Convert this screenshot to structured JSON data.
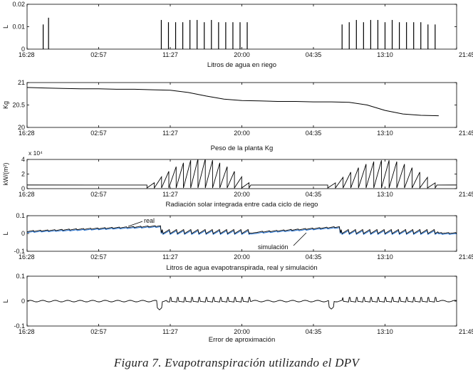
{
  "caption": "Figura 7. Evapotranspiración utilizando el DPV",
  "colors": {
    "main": "#000000",
    "simulation": "#1f6fd1",
    "axis": "#000000"
  },
  "chart_data": [
    {
      "type": "bar",
      "name": "riego",
      "ylabel": "L",
      "xlabel": "Litros de agua en riego",
      "ylim": [
        0,
        0.02
      ],
      "yticks": [
        "0",
        "0.01",
        "0.02"
      ],
      "xticks": [
        "16:28",
        "02:57",
        "11:27",
        "20:00",
        "04:35",
        "13:10",
        "21:45"
      ],
      "xlim": [
        0,
        24
      ],
      "pulses": [
        {
          "x": 0.9,
          "v": 0.011
        },
        {
          "x": 1.2,
          "v": 0.014
        },
        {
          "x": 7.5,
          "v": 0.013
        },
        {
          "x": 7.9,
          "v": 0.012
        },
        {
          "x": 8.3,
          "v": 0.012
        },
        {
          "x": 8.7,
          "v": 0.012
        },
        {
          "x": 9.1,
          "v": 0.013
        },
        {
          "x": 9.5,
          "v": 0.013
        },
        {
          "x": 9.9,
          "v": 0.012
        },
        {
          "x": 10.3,
          "v": 0.013
        },
        {
          "x": 10.7,
          "v": 0.012
        },
        {
          "x": 11.1,
          "v": 0.012
        },
        {
          "x": 11.5,
          "v": 0.012
        },
        {
          "x": 11.9,
          "v": 0.012
        },
        {
          "x": 12.3,
          "v": 0.012
        },
        {
          "x": 17.6,
          "v": 0.011
        },
        {
          "x": 18.0,
          "v": 0.012
        },
        {
          "x": 18.4,
          "v": 0.013
        },
        {
          "x": 18.8,
          "v": 0.012
        },
        {
          "x": 19.2,
          "v": 0.013
        },
        {
          "x": 19.6,
          "v": 0.013
        },
        {
          "x": 20.0,
          "v": 0.012
        },
        {
          "x": 20.4,
          "v": 0.013
        },
        {
          "x": 20.8,
          "v": 0.012
        },
        {
          "x": 21.2,
          "v": 0.012
        },
        {
          "x": 21.6,
          "v": 0.012
        },
        {
          "x": 22.0,
          "v": 0.012
        },
        {
          "x": 22.4,
          "v": 0.011
        },
        {
          "x": 22.8,
          "v": 0.011
        }
      ]
    },
    {
      "type": "line",
      "name": "peso",
      "ylabel": "Kg",
      "xlabel": "Peso de la planta Kg",
      "ylim": [
        20,
        21
      ],
      "yticks": [
        "20",
        "20.5",
        "21"
      ],
      "xticks": [
        "16:28",
        "02:57",
        "11:27",
        "20:00",
        "04:35",
        "13:10",
        "21:45"
      ],
      "xlim": [
        0,
        24
      ],
      "x": [
        0,
        1,
        2,
        3,
        4,
        5,
        6,
        7,
        8,
        9,
        10,
        11,
        12,
        13,
        14,
        15,
        16,
        17,
        18,
        19,
        20,
        21,
        22,
        23
      ],
      "y": [
        20.89,
        20.88,
        20.87,
        20.86,
        20.86,
        20.85,
        20.85,
        20.84,
        20.83,
        20.78,
        20.7,
        20.63,
        20.6,
        20.59,
        20.58,
        20.58,
        20.57,
        20.57,
        20.56,
        20.5,
        20.38,
        20.3,
        20.27,
        20.26
      ]
    },
    {
      "type": "line",
      "name": "radiacion",
      "ylabel": "kW/(m²)",
      "exponent_label": "x 10⁴",
      "xlabel": "Radiación solar integrada entre cada ciclo de riego",
      "ylim": [
        0,
        4
      ],
      "yticks": [
        "0",
        "2",
        "4"
      ],
      "xticks": [
        "16:28",
        "02:57",
        "11:27",
        "20:00",
        "04:35",
        "13:10",
        "21:45"
      ],
      "xlim": [
        0,
        24
      ],
      "days": [
        {
          "start": 6.7,
          "end": 12.4,
          "cycles": 14,
          "peak_day": 3.7
        },
        {
          "start": 16.8,
          "end": 22.8,
          "cycles": 14,
          "peak_day": 3.5
        }
      ],
      "night_level": 0.5
    },
    {
      "type": "line",
      "name": "evapotranspiracion",
      "ylabel": "L",
      "xlabel": "Litros de agua evapotranspirada, real y simulación",
      "ylim": [
        -0.1,
        0.1
      ],
      "yticks": [
        "-0.1",
        "0",
        "0.1"
      ],
      "xticks": [
        "16:28",
        "02:57",
        "11:27",
        "20:00",
        "04:35",
        "13:10",
        "21:45"
      ],
      "xlim": [
        0,
        24
      ],
      "series": [
        {
          "name": "real",
          "color": "#000000"
        },
        {
          "name": "simulación",
          "color": "#1f6fd1"
        }
      ],
      "annotations": [
        "real",
        "simulación"
      ]
    },
    {
      "type": "line",
      "name": "error",
      "ylabel": "L",
      "xlabel": "Error de aproximación",
      "ylim": [
        -0.1,
        0.1
      ],
      "yticks": [
        "-0.1",
        "0",
        "0.1"
      ],
      "xticks": [
        "16:28",
        "02:57",
        "11:27",
        "20:00",
        "04:35",
        "13:10",
        "21:45"
      ],
      "xlim": [
        0,
        24
      ]
    }
  ]
}
